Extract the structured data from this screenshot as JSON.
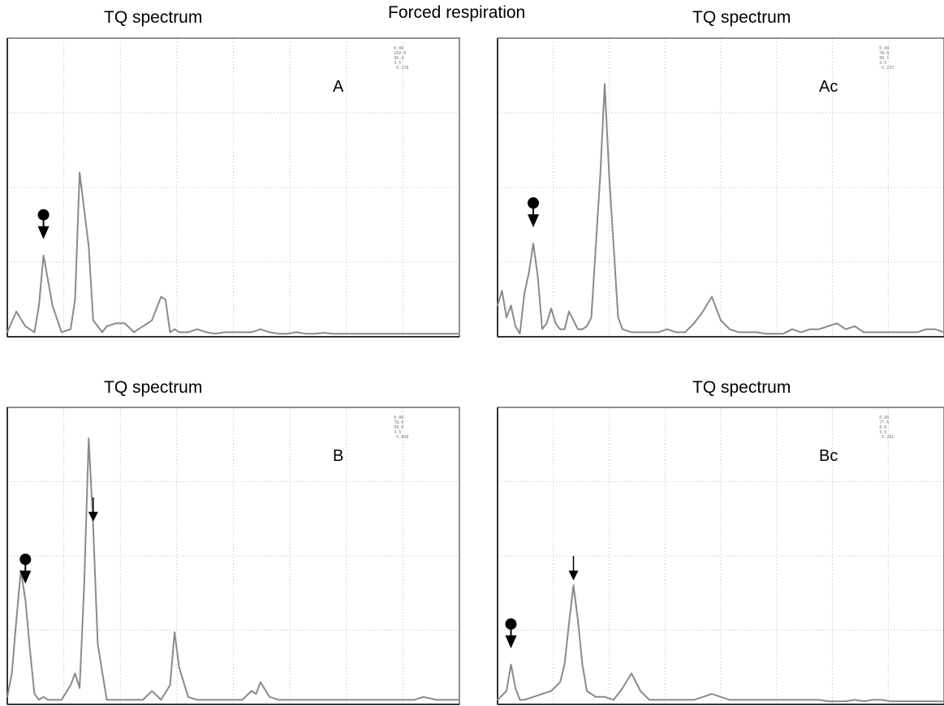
{
  "figure": {
    "center_title": "Forced respiration"
  },
  "chart_data": [
    {
      "id": "A",
      "type": "line",
      "title": "TQ spectrum",
      "panel_label": "A",
      "readout": [
        "0.00",
        "102.0",
        "96.4",
        "3.5",
        "-5.278"
      ],
      "xlim": [
        0,
        100
      ],
      "ylim": [
        0,
        100
      ],
      "x": [
        0,
        2,
        4,
        6,
        7,
        8,
        10,
        12,
        14,
        15,
        16,
        18,
        19,
        20,
        21,
        22,
        24,
        26,
        28,
        30,
        32,
        34,
        35,
        36,
        37,
        38,
        40,
        42,
        44,
        46,
        48,
        50,
        52,
        54,
        56,
        58,
        60,
        62,
        64,
        66,
        68,
        70,
        72,
        74,
        76,
        78,
        80,
        85,
        90,
        95,
        100
      ],
      "values": [
        1,
        8,
        3,
        1,
        10,
        27,
        10,
        1,
        2,
        12,
        55,
        30,
        5,
        3,
        1,
        3,
        4,
        4,
        1,
        3,
        5,
        13,
        12,
        1,
        2,
        1,
        1,
        2,
        1,
        0.5,
        1,
        1,
        1,
        1,
        2,
        1,
        0.5,
        0.5,
        1,
        0.5,
        0.5,
        0.8,
        0.5,
        0.5,
        0.5,
        0.5,
        0.5,
        0.5,
        0.5,
        0.5,
        0.5
      ],
      "markers": [
        {
          "x": 8,
          "type": "dot-arrow"
        }
      ]
    },
    {
      "id": "Ac",
      "type": "line",
      "title": "TQ spectrum",
      "panel_label": "Ac",
      "readout": [
        "0.00",
        "78.0",
        "90.1",
        "3.5",
        "-5.237"
      ],
      "xlim": [
        0,
        100
      ],
      "ylim": [
        0,
        100
      ],
      "x": [
        0,
        1,
        2,
        3,
        4,
        5,
        6,
        7,
        8,
        9,
        10,
        11,
        12,
        13,
        14,
        15,
        16,
        18,
        19,
        20,
        21,
        22,
        23,
        24,
        25,
        26,
        27,
        28,
        30,
        32,
        34,
        36,
        38,
        40,
        42,
        44,
        46,
        48,
        50,
        52,
        54,
        56,
        58,
        60,
        62,
        64,
        66,
        68,
        70,
        72,
        74,
        76,
        78,
        80,
        82,
        84,
        86,
        88,
        90,
        92,
        94,
        96,
        98,
        100
      ],
      "values": [
        10,
        15,
        6,
        10,
        3,
        0.5,
        14,
        21,
        31,
        20,
        2,
        4,
        9,
        4,
        2,
        2,
        8,
        2,
        2,
        3,
        6,
        30,
        54,
        85,
        54,
        30,
        6,
        2,
        1,
        1,
        1,
        1,
        2,
        1,
        1,
        4,
        8,
        13,
        5,
        2,
        1,
        1,
        1,
        0.5,
        0.5,
        0.5,
        2,
        1,
        2,
        2,
        3,
        4,
        2,
        3,
        1,
        1,
        1,
        1,
        1,
        1,
        1,
        2,
        2,
        1
      ],
      "markers": [
        {
          "x": 8,
          "type": "dot-arrow"
        }
      ]
    },
    {
      "id": "B",
      "type": "line",
      "title": "TQ spectrum",
      "panel_label": "B",
      "readout": [
        "0.00",
        "78.0",
        "99.0",
        "3.5",
        "-5.608"
      ],
      "xlim": [
        0,
        100
      ],
      "ylim": [
        0,
        100
      ],
      "x": [
        0,
        1,
        2,
        3,
        4,
        5,
        6,
        7,
        8,
        9,
        10,
        12,
        14,
        15,
        16,
        17,
        18,
        19,
        20,
        22,
        24,
        26,
        28,
        30,
        32,
        34,
        36,
        37,
        38,
        40,
        42,
        44,
        46,
        48,
        50,
        52,
        54,
        55,
        56,
        58,
        60,
        62,
        64,
        66,
        68,
        70,
        72,
        74,
        76,
        78,
        80,
        85,
        90,
        92,
        95,
        100
      ],
      "values": [
        2,
        10,
        28,
        45,
        35,
        18,
        3,
        1,
        2,
        1,
        1,
        1,
        6,
        10,
        5,
        40,
        90,
        60,
        20,
        1,
        1,
        1,
        1,
        1,
        4,
        1,
        6,
        24,
        12,
        2,
        1,
        1,
        1,
        1,
        1,
        1,
        4,
        3,
        7,
        2,
        1,
        1,
        1,
        1,
        1,
        1,
        1,
        1,
        1,
        1,
        1,
        1,
        1,
        2,
        1,
        1
      ],
      "markers": [
        {
          "x": 4,
          "type": "dot-arrow"
        },
        {
          "x": 19,
          "type": "arrow"
        }
      ]
    },
    {
      "id": "Bc",
      "type": "line",
      "title": "TQ spectrum",
      "panel_label": "Bc",
      "readout": [
        "0.00",
        "77.6",
        "8.8",
        "3.5",
        "-5.281"
      ],
      "xlim": [
        0,
        100
      ],
      "ylim": [
        0,
        100
      ],
      "x": [
        0,
        2,
        3,
        4,
        5,
        6,
        8,
        10,
        12,
        14,
        15,
        16,
        17,
        18,
        19,
        20,
        22,
        24,
        26,
        28,
        30,
        32,
        34,
        36,
        38,
        40,
        42,
        44,
        46,
        48,
        50,
        52,
        54,
        56,
        58,
        60,
        62,
        64,
        66,
        68,
        70,
        72,
        74,
        76,
        78,
        80,
        82,
        84,
        86,
        88,
        90,
        92,
        94,
        96,
        98,
        100
      ],
      "values": [
        1,
        4,
        13,
        5,
        1,
        1,
        2,
        3,
        4,
        7,
        13,
        27,
        40,
        28,
        13,
        4,
        2,
        2,
        1,
        5,
        10,
        4,
        1,
        1,
        1,
        1,
        1,
        1,
        2,
        3,
        2,
        1,
        1,
        1,
        1,
        1,
        1,
        1,
        1,
        1,
        1,
        1,
        0.5,
        0.5,
        0.5,
        1,
        0.5,
        1,
        1,
        0.5,
        0.5,
        0.5,
        0.5,
        0.5,
        0.5,
        0.5
      ],
      "markers": [
        {
          "x": 3,
          "type": "dot-arrow"
        },
        {
          "x": 17,
          "type": "arrow"
        }
      ]
    }
  ]
}
